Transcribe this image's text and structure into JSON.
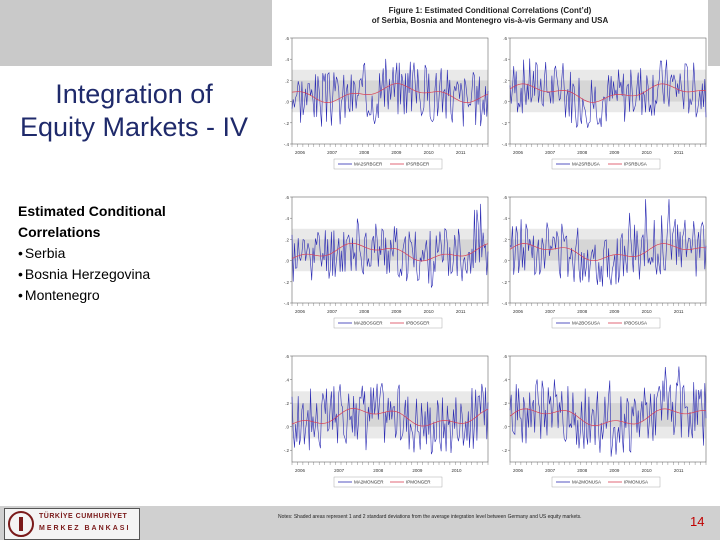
{
  "slide": {
    "title_line1": "Integration of",
    "title_line2": "Equity Markets - IV",
    "bullet_heading_line1": "Estimated Conditional",
    "bullet_heading_line2": "Correlations",
    "bullets": [
      "Serbia",
      "Bosnia Herzegovina",
      "Montenegro"
    ],
    "page_number": "14"
  },
  "figure": {
    "title_line1": "Figure 1: Estimated Conditional Correlations (Cont’d)",
    "title_line2": "of Serbia, Bosnia and Montenegro vis-à-vis Germany and USA",
    "footnote": "Notes: Shaded areas represent 1 and 2 standard deviations from the average integration level between Germany and US equity markets."
  },
  "logo": {
    "line1": "TÜRKİYE CUMHURİYET",
    "line2": "MERKEZ BANKASI"
  },
  "chart_data": [
    {
      "type": "line",
      "position": "top-left",
      "yticks": [
        ".6",
        ".4",
        ".2",
        ".0",
        "-.2",
        "-.4"
      ],
      "ylim": [
        -0.4,
        0.6
      ],
      "xticks": [
        "2006",
        "2007",
        "2008",
        "2009",
        "2010",
        "2011"
      ],
      "legend": [
        "MA2SRBGER",
        "IPSRBGER"
      ],
      "series": [
        {
          "name": "MA2SRBGER",
          "color": "#2b2bb3",
          "seed": 3
        },
        {
          "name": "IPSRBGER",
          "color": "#d94055",
          "seed": 3
        }
      ]
    },
    {
      "type": "line",
      "position": "top-right",
      "yticks": [
        ".6",
        ".4",
        ".2",
        ".0",
        "-.2",
        "-.4"
      ],
      "ylim": [
        -0.4,
        0.6
      ],
      "xticks": [
        "2006",
        "2007",
        "2008",
        "2009",
        "2010",
        "2011"
      ],
      "legend": [
        "MA2SRBUSA",
        "IPSRBUSA"
      ],
      "series": [
        {
          "name": "MA2SRBUSA",
          "color": "#2b2bb3",
          "seed": 7
        },
        {
          "name": "IPSRBUSA",
          "color": "#d94055",
          "seed": 7
        }
      ]
    },
    {
      "type": "line",
      "position": "middle-left",
      "yticks": [
        ".6",
        ".4",
        ".2",
        ".0",
        "-.2",
        "-.4"
      ],
      "ylim": [
        -0.4,
        0.6
      ],
      "xticks": [
        "2006",
        "2007",
        "2008",
        "2009",
        "2010",
        "2011"
      ],
      "legend": [
        "MA2BOSGER",
        "IPBOSGER"
      ],
      "series": [
        {
          "name": "MA2BOSGER",
          "color": "#2b2bb3",
          "seed": 11
        },
        {
          "name": "IPBOSGER",
          "color": "#d94055",
          "seed": 11
        }
      ]
    },
    {
      "type": "line",
      "position": "middle-right",
      "yticks": [
        ".6",
        ".4",
        ".2",
        ".0",
        "-.2",
        "-.4"
      ],
      "ylim": [
        -0.4,
        0.6
      ],
      "xticks": [
        "2006",
        "2007",
        "2008",
        "2009",
        "2010",
        "2011"
      ],
      "legend": [
        "MA2BOSUSA",
        "IPBOSUSA"
      ],
      "series": [
        {
          "name": "MA2BOSUSA",
          "color": "#2b2bb3",
          "seed": 13
        },
        {
          "name": "IPBOSUSA",
          "color": "#d94055",
          "seed": 13
        }
      ]
    },
    {
      "type": "line",
      "position": "bottom-left",
      "yticks": [
        ".6",
        ".4",
        ".2",
        ".0",
        "-.2"
      ],
      "ylim": [
        -0.3,
        0.6
      ],
      "xticks": [
        "2006",
        "2007",
        "2008",
        "2009",
        "2010"
      ],
      "legend": [
        "MA2MONGER",
        "IPMONGER"
      ],
      "series": [
        {
          "name": "MA2MONGER",
          "color": "#2b2bb3",
          "seed": 17
        },
        {
          "name": "IPMONGER",
          "color": "#d94055",
          "seed": 17
        }
      ]
    },
    {
      "type": "line",
      "position": "bottom-right",
      "yticks": [
        ".6",
        ".4",
        ".2",
        ".0",
        "-.2"
      ],
      "ylim": [
        -0.3,
        0.6
      ],
      "xticks": [
        "2006",
        "2007",
        "2008",
        "2009",
        "2010",
        "2011"
      ],
      "legend": [
        "MA2MONUSA",
        "IPMONUSA"
      ],
      "series": [
        {
          "name": "MA2MONUSA",
          "color": "#2b2bb3",
          "seed": 19
        },
        {
          "name": "IPMONUSA",
          "color": "#d94055",
          "seed": 19
        }
      ]
    }
  ]
}
